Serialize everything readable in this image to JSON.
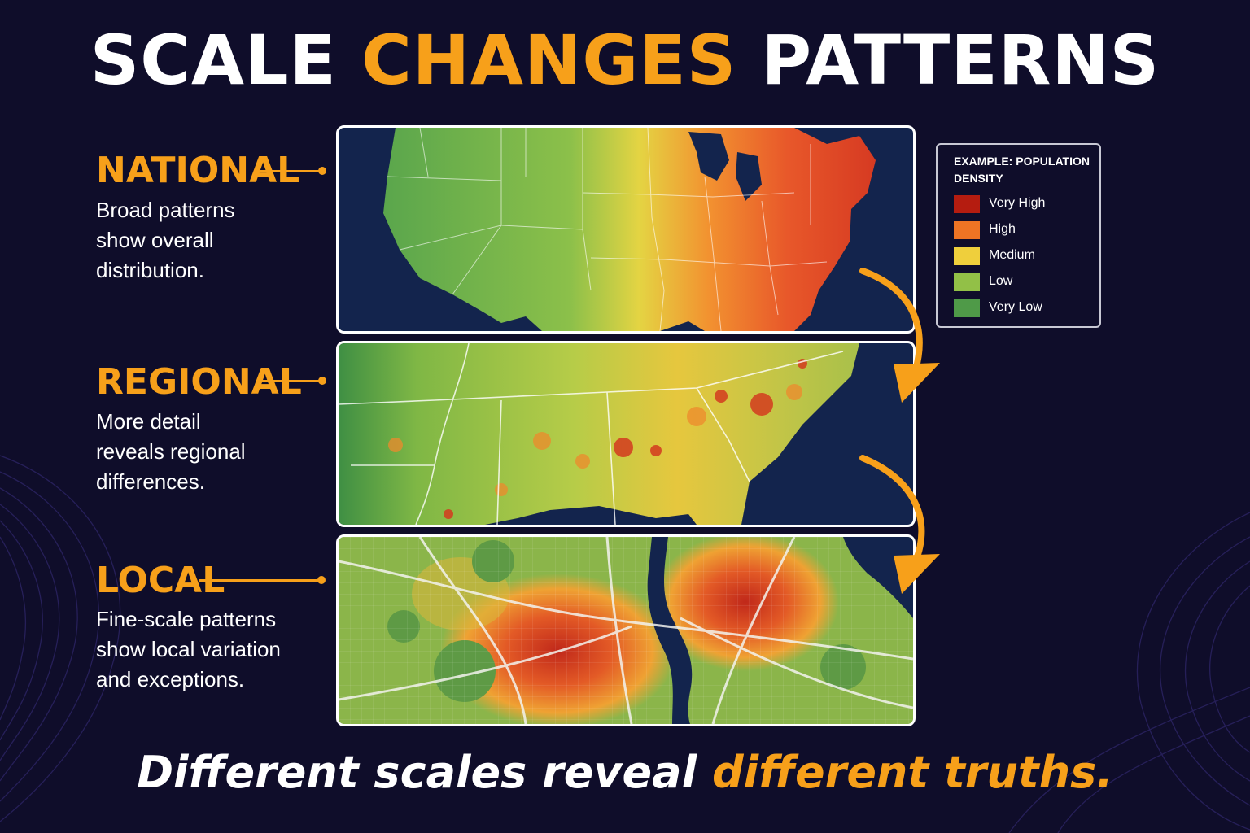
{
  "title": {
    "part1": "SCALE",
    "part2": "CHANGES",
    "part3": "PATTERNS"
  },
  "scales": [
    {
      "heading": "NATIONAL",
      "line1": "Broad patterns",
      "line2": "show overall",
      "line3": "distribution."
    },
    {
      "heading": "REGIONAL",
      "line1": "More detail",
      "line2": "reveals regional",
      "line3": "differences."
    },
    {
      "heading": "LOCAL",
      "line1": "Fine-scale patterns",
      "line2": "show local variation",
      "line3": "and exceptions."
    }
  ],
  "legend": {
    "title": "EXAMPLE: POPULATION DENSITY",
    "items": [
      {
        "label": "Very High",
        "color": "#b51c10"
      },
      {
        "label": "High",
        "color": "#ee7424"
      },
      {
        "label": "Medium",
        "color": "#efcf3c"
      },
      {
        "label": "Low",
        "color": "#92c047"
      },
      {
        "label": "Very Low",
        "color": "#4f9a48"
      }
    ]
  },
  "tagline": {
    "part1": "Different scales reveal",
    "part2": "different truths."
  },
  "colors": {
    "background": "#0f0d2a",
    "accent": "#f7a01a",
    "water": "#13244d"
  }
}
